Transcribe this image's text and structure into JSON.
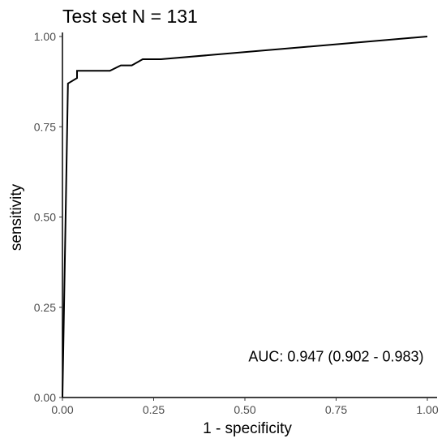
{
  "chart_data": {
    "type": "line",
    "title": "Test set N = 131",
    "xlabel": "1 - specificity",
    "ylabel": "sensitivity",
    "xlim": [
      0,
      1
    ],
    "ylim": [
      0,
      1
    ],
    "x_ticks": [
      0,
      0.25,
      0.5,
      0.75,
      1
    ],
    "x_tick_labels": [
      "0.00",
      "0.25",
      "0.50",
      "0.75",
      "1.00"
    ],
    "y_ticks": [
      0,
      0.25,
      0.5,
      0.75,
      1
    ],
    "y_tick_labels": [
      "0.00",
      "0.25",
      "0.50",
      "0.75",
      "1.00"
    ],
    "grid": false,
    "annotation": "AUC: 0.947 (0.902 - 0.983)",
    "annotation_anchor": {
      "x": 0.99,
      "y": 0.1
    },
    "line_color": "#000000",
    "series": [
      {
        "x": [
          0,
          0.015,
          0.015,
          0.04,
          0.04,
          0.13,
          0.16,
          0.19,
          0.22,
          0.27,
          1.0
        ],
        "y": [
          0,
          0.87,
          0.87,
          0.885,
          0.905,
          0.905,
          0.92,
          0.92,
          0.937,
          0.937,
          1.0
        ]
      }
    ]
  }
}
